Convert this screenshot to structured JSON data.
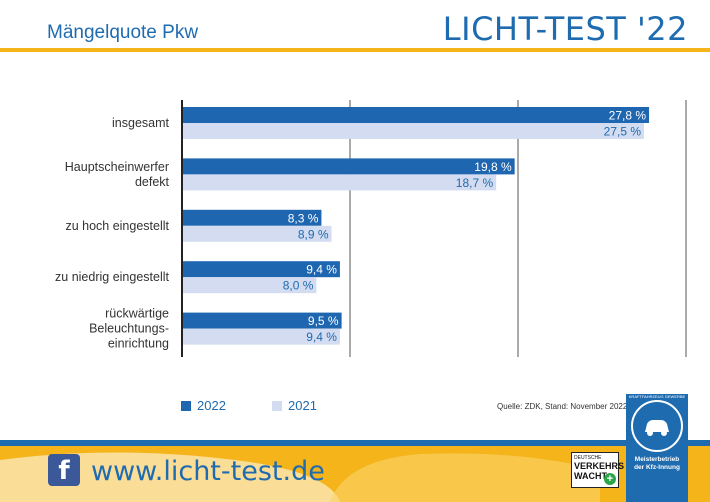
{
  "header": {
    "subtitle": "Mängelquote Pkw",
    "brand": "LICHT-TEST '22"
  },
  "colors": {
    "primary": "#1e6bb0",
    "series_2022": "#1f66b1",
    "series_2021": "#d3dcf0",
    "accent": "#f4b41a",
    "facebook": "#3b5998"
  },
  "chart_data": {
    "type": "bar",
    "orientation": "horizontal",
    "categories": [
      [
        "insgesamt"
      ],
      [
        "Hauptscheinwerfer",
        "defekt"
      ],
      [
        "zu hoch eingestellt"
      ],
      [
        "zu niedrig eingestellt"
      ],
      [
        "rückwärtige",
        "Beleuchtungs-",
        "einrichtung"
      ]
    ],
    "series": [
      {
        "name": "2022",
        "values": [
          27.8,
          19.8,
          8.3,
          9.4,
          9.5
        ],
        "labels": [
          "27,8 %",
          "19,8 %",
          "8,3 %",
          "9,4 %",
          "9,5 %"
        ]
      },
      {
        "name": "2021",
        "values": [
          27.5,
          18.7,
          8.9,
          8.0,
          9.4
        ],
        "labels": [
          "27,5 %",
          "18,7 %",
          "8,9 %",
          "8,0 %",
          "9,4 %"
        ]
      }
    ],
    "xlim": [
      0,
      30
    ],
    "grid": true,
    "legend": "bottom-left"
  },
  "source": "Quelle: ZDK, Stand: November 2022",
  "footer": {
    "facebook_icon": "facebook-icon",
    "url": "www.licht-test.de",
    "vw_logo": [
      "DEUTSCHE",
      "VERKEHRS",
      "WACHT"
    ],
    "kfz_logo": [
      "KRAFTFAHRZEUG",
      "GEWERBE",
      "Meisterbetrieb",
      "der Kfz-Innung"
    ]
  }
}
